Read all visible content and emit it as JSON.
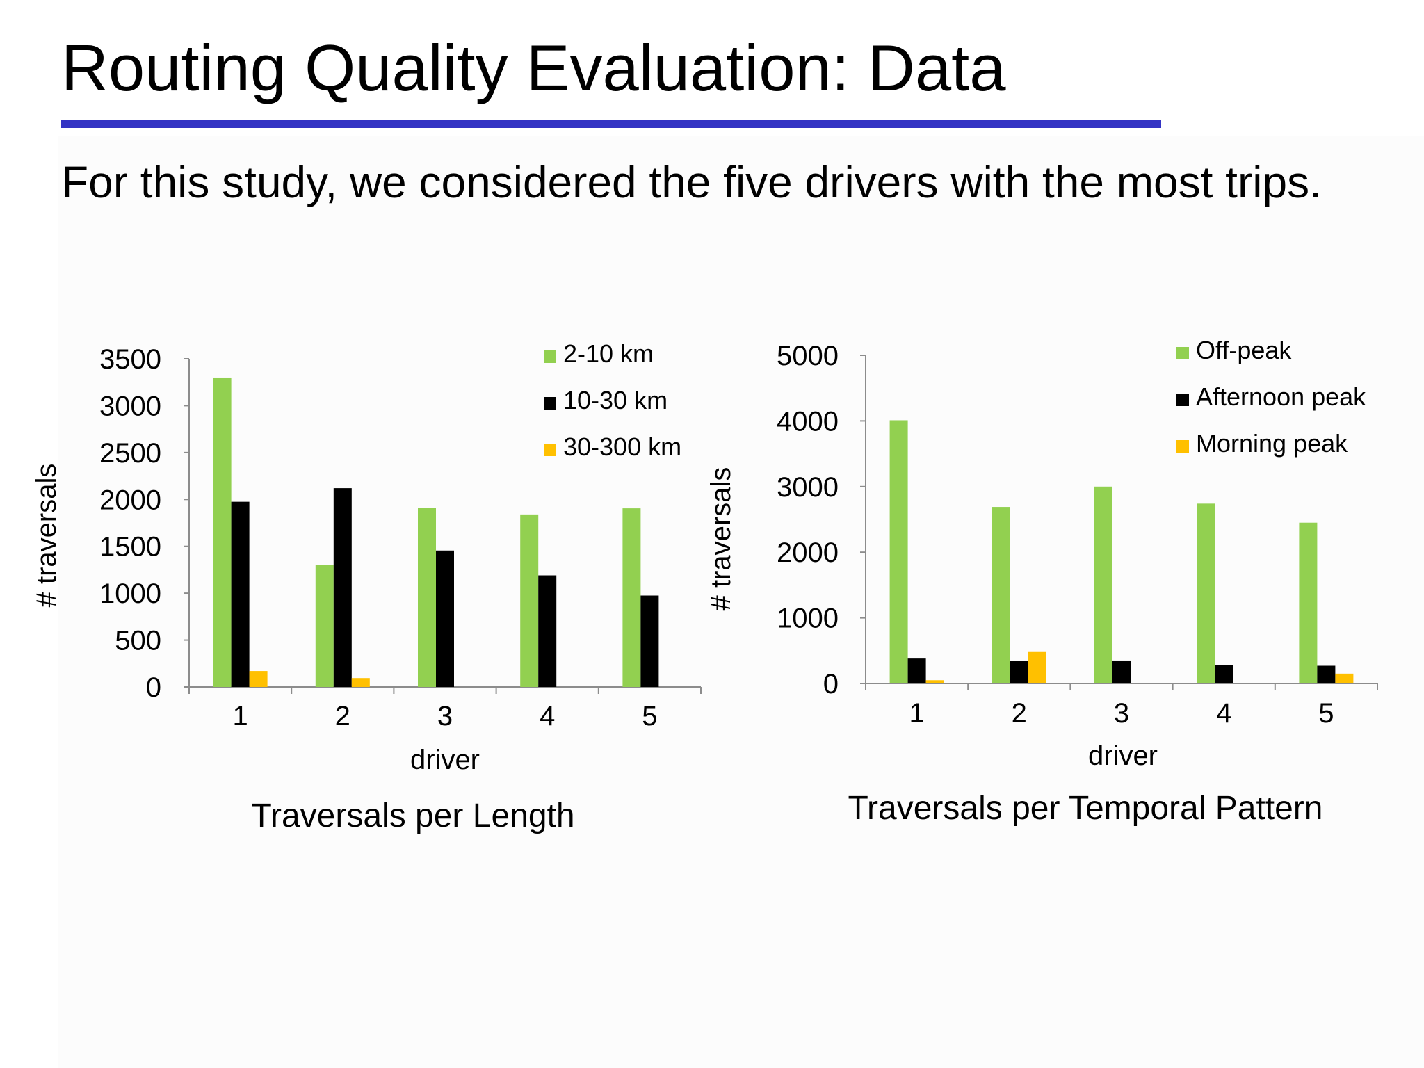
{
  "slide": {
    "title": "Routing Quality Evaluation: Data",
    "body_text": "For this study, we considered the five drivers with the most trips."
  },
  "colors": {
    "title_rule": "#3434c4",
    "green": "#92d050",
    "black": "#000000",
    "yellow": "#ffc000",
    "axis": "#8c8c8c",
    "background": "#fcfcfc"
  },
  "chart_data": [
    {
      "type": "bar",
      "title": "Traversals per Length",
      "xlabel": "driver",
      "ylabel": "# traversals",
      "categories": [
        "1",
        "2",
        "3",
        "4",
        "5"
      ],
      "ylim": [
        0,
        3500
      ],
      "yticks": [
        "0",
        "500",
        "1000",
        "1500",
        "2000",
        "2500",
        "3000",
        "3500"
      ],
      "grid": false,
      "legend_position": "top-right",
      "series": [
        {
          "name": "2-10 km",
          "color": "#92d050",
          "values": [
            3300,
            1300,
            1910,
            1840,
            1905
          ]
        },
        {
          "name": "10-30 km",
          "color": "#000000",
          "values": [
            1975,
            2120,
            1455,
            1190,
            975
          ]
        },
        {
          "name": "30-300 km",
          "color": "#ffc000",
          "values": [
            170,
            95,
            0,
            0,
            0
          ]
        }
      ]
    },
    {
      "type": "bar",
      "title": "Traversals per Temporal Pattern",
      "xlabel": "driver",
      "ylabel": "# traversals",
      "categories": [
        "1",
        "2",
        "3",
        "4",
        "5"
      ],
      "ylim": [
        0,
        5000
      ],
      "yticks": [
        "0",
        "1000",
        "2000",
        "3000",
        "4000",
        "5000"
      ],
      "grid": false,
      "legend_position": "top-right",
      "series": [
        {
          "name": "Off-peak",
          "color": "#92d050",
          "values": [
            4010,
            2690,
            3000,
            2740,
            2450
          ]
        },
        {
          "name": "Afternoon peak",
          "color": "#000000",
          "values": [
            380,
            340,
            350,
            285,
            270
          ]
        },
        {
          "name": "Morning peak",
          "color": "#ffc000",
          "values": [
            50,
            490,
            5,
            0,
            150
          ]
        }
      ]
    }
  ]
}
